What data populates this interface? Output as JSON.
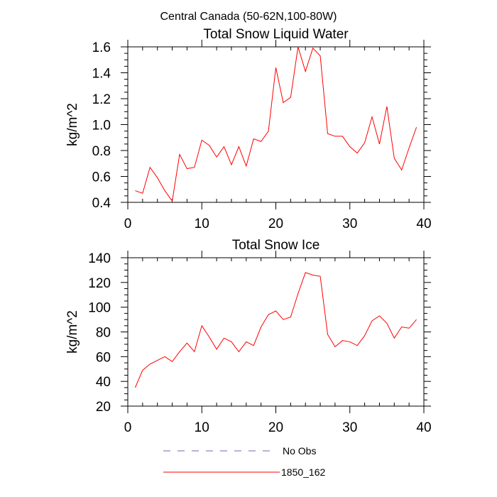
{
  "figure": {
    "suptitle": "Central Canada (50-62N,100-80W)"
  },
  "chart_data": [
    {
      "type": "line",
      "title": "Total Snow Liquid Water",
      "xlabel": "",
      "ylabel": "kg/m^2",
      "xlim": [
        0,
        40
      ],
      "ylim": [
        0.4,
        1.6
      ],
      "xticks": [
        0,
        10,
        20,
        30,
        40
      ],
      "yticks": [
        0.4,
        0.6,
        0.8,
        1.0,
        1.2,
        1.4,
        1.6
      ],
      "ytick_labels": [
        "0.4",
        "0.6",
        "0.8",
        "1.0",
        "1.2",
        "1.4",
        "1.6"
      ],
      "x_minor_step": 2,
      "y_minor_step": 0.05,
      "grid": false,
      "series": [
        {
          "name": "1850_162",
          "color": "#ff0000",
          "x": [
            1,
            2,
            3,
            4,
            5,
            6,
            7,
            8,
            9,
            10,
            11,
            12,
            13,
            14,
            15,
            16,
            17,
            18,
            19,
            20,
            21,
            22,
            23,
            24,
            25,
            26,
            27,
            28,
            29,
            30,
            31,
            32,
            33,
            34,
            35,
            36,
            37,
            38,
            39
          ],
          "y": [
            0.49,
            0.47,
            0.67,
            0.59,
            0.49,
            0.41,
            0.77,
            0.66,
            0.67,
            0.88,
            0.84,
            0.75,
            0.83,
            0.69,
            0.83,
            0.68,
            0.89,
            0.87,
            0.95,
            1.44,
            1.17,
            1.21,
            1.6,
            1.41,
            1.59,
            1.53,
            0.93,
            0.91,
            0.91,
            0.83,
            0.78,
            0.86,
            1.06,
            0.85,
            1.14,
            0.74,
            0.65,
            0.82,
            0.98
          ]
        }
      ]
    },
    {
      "type": "line",
      "title": "Total Snow Ice",
      "xlabel": "",
      "ylabel": "kg/m^2",
      "xlim": [
        0,
        40
      ],
      "ylim": [
        20,
        140
      ],
      "xticks": [
        0,
        10,
        20,
        30,
        40
      ],
      "yticks": [
        20,
        40,
        60,
        80,
        100,
        120,
        140
      ],
      "ytick_labels": [
        "20",
        "40",
        "60",
        "80",
        "100",
        "120",
        "140"
      ],
      "x_minor_step": 2,
      "y_minor_step": 5,
      "grid": false,
      "series": [
        {
          "name": "1850_162",
          "color": "#ff0000",
          "x": [
            1,
            2,
            3,
            4,
            5,
            6,
            7,
            8,
            9,
            10,
            11,
            12,
            13,
            14,
            15,
            16,
            17,
            18,
            19,
            20,
            21,
            22,
            23,
            24,
            25,
            26,
            27,
            28,
            29,
            30,
            31,
            32,
            33,
            34,
            35,
            36,
            37,
            38,
            39
          ],
          "y": [
            35,
            49,
            54,
            57,
            60,
            56,
            64,
            71,
            64,
            85,
            76,
            66,
            75,
            72,
            64,
            72,
            69,
            84,
            94,
            97,
            90,
            92,
            111,
            128,
            126,
            125,
            78,
            68,
            73,
            72,
            69,
            77,
            89,
            93,
            87,
            75,
            84,
            83,
            90
          ]
        }
      ]
    }
  ],
  "legend": {
    "position": "bottom-center",
    "items": [
      {
        "label": "No Obs",
        "color": "#6a6ab0",
        "style": "dashed"
      },
      {
        "label": "1850_162",
        "color": "#ff0000",
        "style": "solid"
      }
    ]
  }
}
